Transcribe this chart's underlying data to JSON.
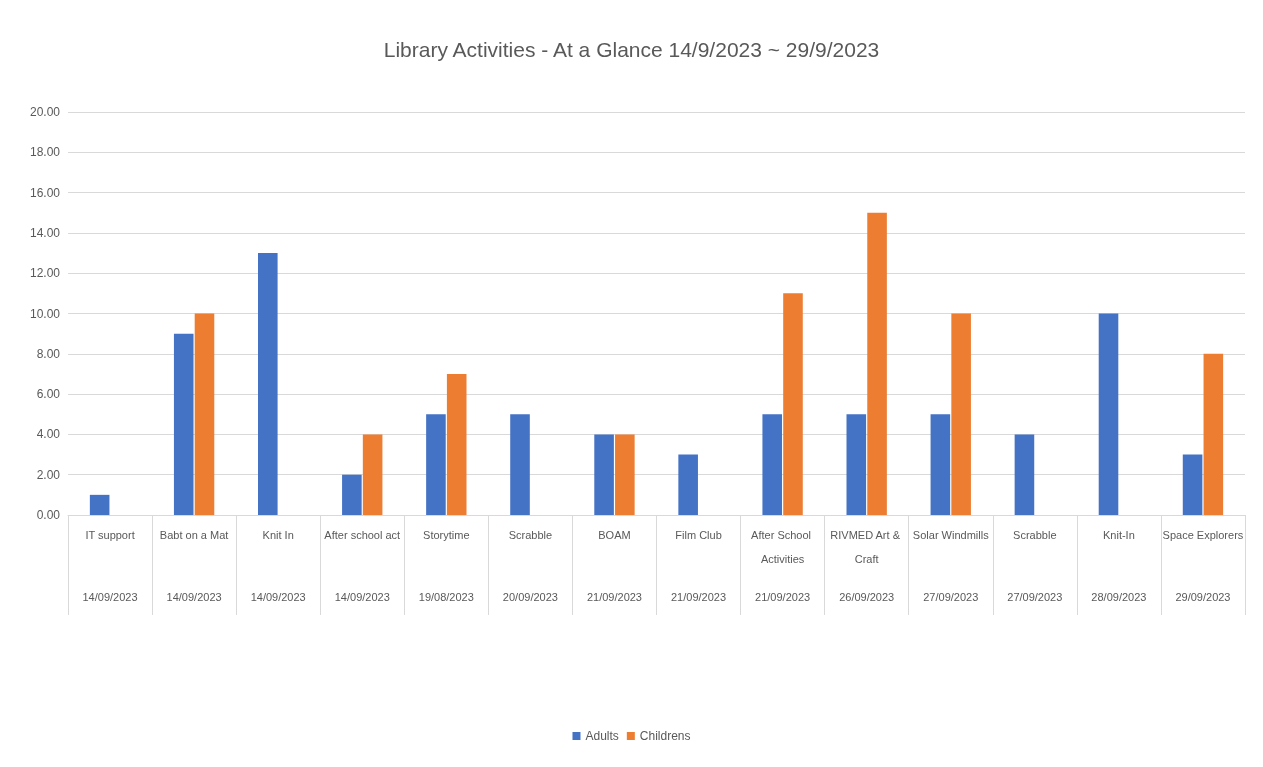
{
  "chart_data": {
    "type": "bar",
    "title": "Library Activities - At a Glance 14/9/2023 ~ 29/9/2023",
    "categories": [
      "IT support",
      "Babt on a Mat",
      "Knit In",
      "After school act",
      "Storytime",
      "Scrabble",
      "BOAM",
      "Film Club",
      "After School Activities",
      "RIVMED Art & Craft",
      "Solar Windmills",
      "Scrabble",
      "Knit-In",
      "Space Explorers"
    ],
    "annotations": [
      "14/09/2023",
      "14/09/2023",
      "14/09/2023",
      "14/09/2023",
      "19/08/2023",
      "20/09/2023",
      "21/09/2023",
      "21/09/2023",
      "21/09/2023",
      "26/09/2023",
      "27/09/2023",
      "27/09/2023",
      "28/09/2023",
      "29/09/2023"
    ],
    "series": [
      {
        "name": "Adults",
        "color": "#4472c4",
        "values": [
          1,
          9,
          13,
          2,
          5,
          5,
          4,
          3,
          5,
          5,
          5,
          4,
          10,
          3
        ]
      },
      {
        "name": "Childrens",
        "color": "#ed7d31",
        "values": [
          null,
          10,
          null,
          4,
          7,
          null,
          4,
          null,
          11,
          15,
          10,
          null,
          null,
          8
        ]
      }
    ],
    "ylim": [
      0,
      20
    ],
    "yticks": [
      {
        "value": 0,
        "label": "0.00"
      },
      {
        "value": 2,
        "label": "2.00"
      },
      {
        "value": 4,
        "label": "4.00"
      },
      {
        "value": 6,
        "label": "6.00"
      },
      {
        "value": 8,
        "label": "8.00"
      },
      {
        "value": 10,
        "label": "10.00"
      },
      {
        "value": 12,
        "label": "12.00"
      },
      {
        "value": 14,
        "label": "14.00"
      },
      {
        "value": 16,
        "label": "16.00"
      },
      {
        "value": 18,
        "label": "18.00"
      },
      {
        "value": 20,
        "label": "20.00"
      }
    ],
    "grid": "y",
    "legend": "bottom"
  }
}
